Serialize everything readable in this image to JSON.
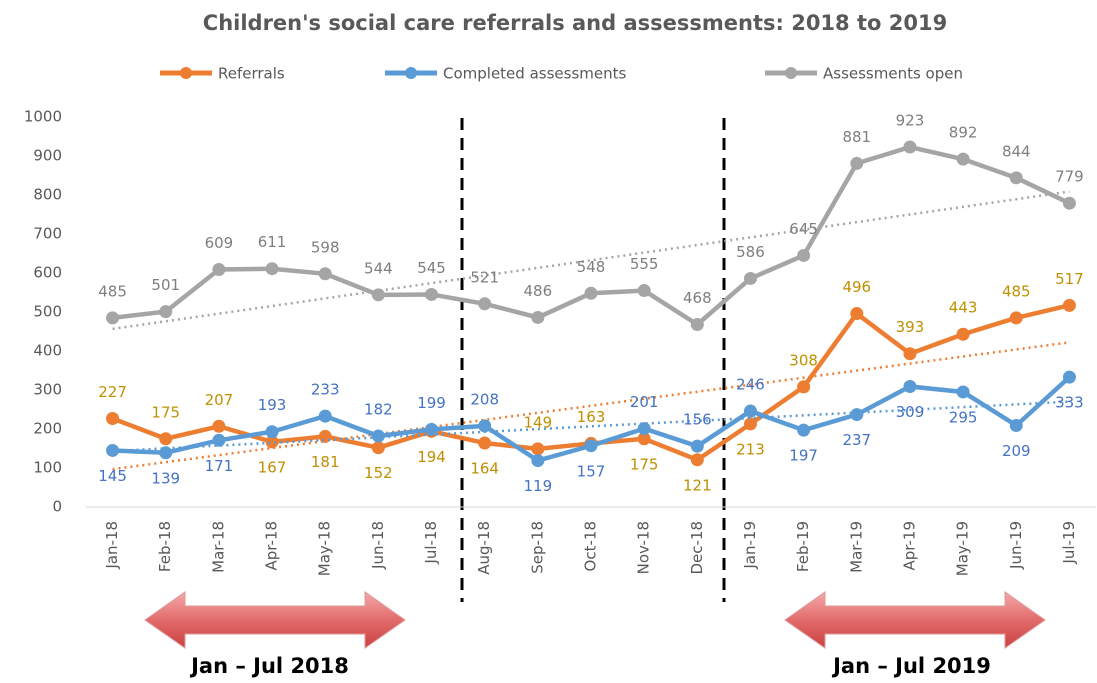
{
  "chart_data": {
    "type": "line",
    "title": "Children's social care referrals and assessments: 2018 to 2019",
    "categories": [
      "Jan-18",
      "Feb-18",
      "Mar-18",
      "Apr-18",
      "May-18",
      "Jun-18",
      "Jul-18",
      "Aug-18",
      "Sep-18",
      "Oct-18",
      "Nov-18",
      "Dec-18",
      "Jan-19",
      "Feb-19",
      "Mar-19",
      "Apr-19",
      "May-19",
      "Jun-19",
      "Jul-19"
    ],
    "series": [
      {
        "name": "Referrals",
        "color": "#ed7d31",
        "label_color": "#bf9000",
        "values": [
          227,
          175,
          207,
          167,
          181,
          152,
          194,
          164,
          149,
          163,
          175,
          121,
          213,
          308,
          496,
          393,
          443,
          485,
          517
        ]
      },
      {
        "name": "Completed assessments",
        "color": "#5b9bd5",
        "label_color": "#4472c4",
        "values": [
          145,
          139,
          171,
          193,
          233,
          182,
          199,
          208,
          119,
          157,
          201,
          156,
          246,
          197,
          237,
          309,
          295,
          209,
          333
        ]
      },
      {
        "name": "Assessments open",
        "color": "#a5a5a5",
        "label_color": "#7f7f7f",
        "values": [
          485,
          501,
          609,
          611,
          598,
          544,
          545,
          521,
          486,
          548,
          555,
          468,
          586,
          645,
          881,
          923,
          892,
          844,
          779
        ]
      }
    ],
    "ylim": [
      0,
      1000
    ],
    "yticks": [
      0,
      100,
      200,
      300,
      400,
      500,
      600,
      700,
      800,
      900,
      1000
    ],
    "grid": false,
    "trendline": true,
    "data_labels": true,
    "legend": "top",
    "annotations": [
      "Jan – Jul 2018",
      "Jan – Jul 2019"
    ]
  }
}
